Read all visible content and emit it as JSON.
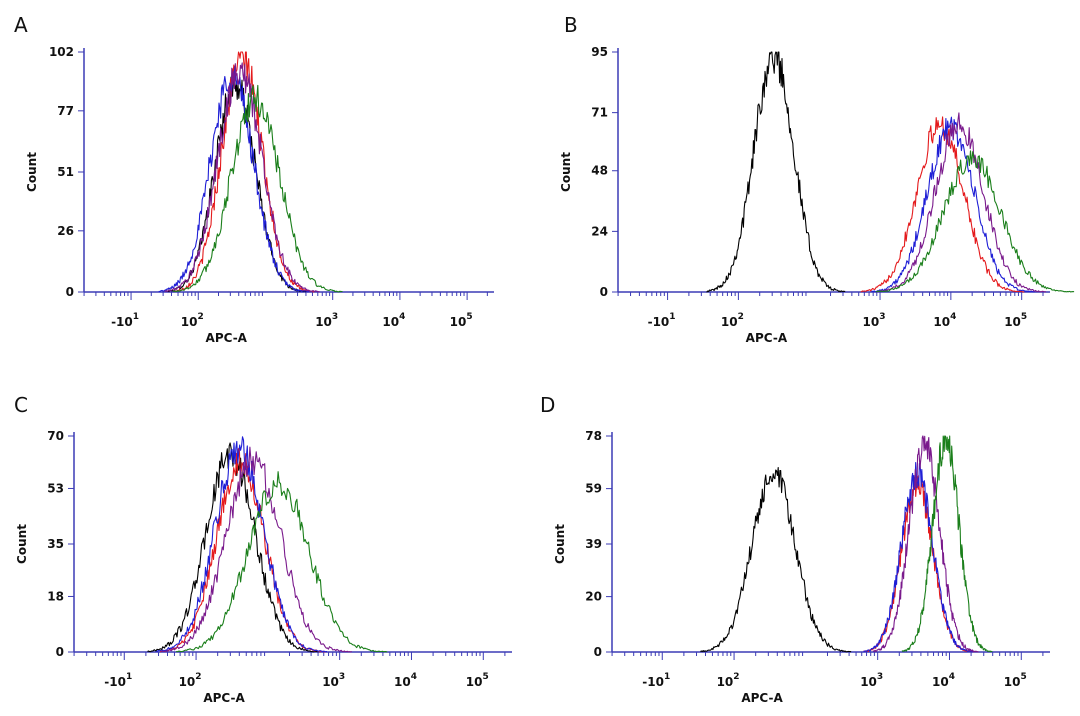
{
  "colors": {
    "isotype": "#000000",
    "red": "#e41a1c",
    "blue": "#1f1fd6",
    "purple": "#7a1a8c",
    "green": "#1b7f1b",
    "axis": "#3b3bb5"
  },
  "chart_data": [
    {
      "type": "line",
      "panel": "A",
      "xlabel": "APC-A",
      "ylabel": "Count",
      "x_scale": "log (decades)",
      "xlim": [
        -0.7,
        5.4
      ],
      "ylim": [
        0,
        102
      ],
      "yticks": [
        0,
        26,
        51,
        77,
        102
      ],
      "xtick_positions": [
        0,
        1,
        3,
        4,
        5
      ],
      "xtick_labels": [
        "-10",
        "10",
        "10",
        "10",
        "10"
      ],
      "xtick_exponents": [
        "1",
        "2",
        "3",
        "4",
        "5"
      ],
      "series": [
        {
          "name": "black",
          "color": "#000000",
          "peak_log": 1.55,
          "peak": 88,
          "width": 0.3
        },
        {
          "name": "red",
          "color": "#e41a1c",
          "peak_log": 1.65,
          "peak": 100,
          "width": 0.3
        },
        {
          "name": "blue",
          "color": "#1f1fd6",
          "peak_log": 1.5,
          "peak": 92,
          "width": 0.32
        },
        {
          "name": "purple",
          "color": "#7a1a8c",
          "peak_log": 1.62,
          "peak": 94,
          "width": 0.33
        },
        {
          "name": "green",
          "color": "#1b7f1b",
          "peak_log": 1.85,
          "peak": 82,
          "width": 0.36
        }
      ]
    },
    {
      "type": "line",
      "panel": "B",
      "xlabel": "APC-A",
      "ylabel": "Count",
      "x_scale": "log (decades)",
      "xlim": [
        -0.7,
        5.4
      ],
      "ylim": [
        0,
        95
      ],
      "yticks": [
        0,
        24,
        48,
        71,
        95
      ],
      "xtick_positions": [
        0,
        1,
        3,
        4,
        5
      ],
      "xtick_labels": [
        "-10",
        "10",
        "10",
        "10",
        "10"
      ],
      "xtick_exponents": [
        "1",
        "2",
        "3",
        "4",
        "5"
      ],
      "series": [
        {
          "name": "black",
          "color": "#000000",
          "peak_log": 1.5,
          "peak": 94,
          "width": 0.28
        },
        {
          "name": "red",
          "color": "#e41a1c",
          "peak_log": 3.85,
          "peak": 66,
          "width": 0.33
        },
        {
          "name": "blue",
          "color": "#1f1fd6",
          "peak_log": 4.0,
          "peak": 65,
          "width": 0.33
        },
        {
          "name": "purple",
          "color": "#7a1a8c",
          "peak_log": 4.12,
          "peak": 66,
          "width": 0.34
        },
        {
          "name": "green",
          "color": "#1b7f1b",
          "peak_log": 4.3,
          "peak": 53,
          "width": 0.4
        }
      ]
    },
    {
      "type": "line",
      "panel": "C",
      "xlabel": "APC-A",
      "ylabel": "Count",
      "x_scale": "log (decades)",
      "xlim": [
        -0.7,
        5.4
      ],
      "ylim": [
        0,
        70
      ],
      "yticks": [
        0,
        18,
        35,
        53,
        70
      ],
      "xtick_positions": [
        0,
        1,
        3,
        4,
        5
      ],
      "xtick_labels": [
        "-10",
        "10",
        "10",
        "10",
        "10"
      ],
      "xtick_exponents": [
        "1",
        "2",
        "3",
        "4",
        "5"
      ],
      "series": [
        {
          "name": "black",
          "color": "#000000",
          "peak_log": 1.48,
          "peak": 64,
          "width": 0.34
        },
        {
          "name": "red",
          "color": "#e41a1c",
          "peak_log": 1.62,
          "peak": 62,
          "width": 0.33
        },
        {
          "name": "blue",
          "color": "#1f1fd6",
          "peak_log": 1.6,
          "peak": 66,
          "width": 0.34
        },
        {
          "name": "purple",
          "color": "#7a1a8c",
          "peak_log": 1.8,
          "peak": 62,
          "width": 0.38
        },
        {
          "name": "green",
          "color": "#1b7f1b",
          "peak_log": 2.15,
          "peak": 55,
          "width": 0.42
        }
      ]
    },
    {
      "type": "line",
      "panel": "D",
      "xlabel": "APC-A",
      "ylabel": "Count",
      "x_scale": "log (decades)",
      "xlim": [
        -0.7,
        5.4
      ],
      "ylim": [
        0,
        78
      ],
      "yticks": [
        0,
        20,
        39,
        59,
        78
      ],
      "xtick_positions": [
        0,
        1,
        3,
        4,
        5
      ],
      "xtick_labels": [
        "-10",
        "10",
        "10",
        "10",
        "10"
      ],
      "xtick_exponents": [
        "1",
        "2",
        "3",
        "4",
        "5"
      ],
      "series": [
        {
          "name": "black",
          "color": "#000000",
          "peak_log": 1.55,
          "peak": 64,
          "width": 0.3
        },
        {
          "name": "red",
          "color": "#e41a1c",
          "peak_log": 3.55,
          "peak": 60,
          "width": 0.22
        },
        {
          "name": "blue",
          "color": "#1f1fd6",
          "peak_log": 3.55,
          "peak": 64,
          "width": 0.22
        },
        {
          "name": "purple",
          "color": "#7a1a8c",
          "peak_log": 3.65,
          "peak": 75,
          "width": 0.21
        },
        {
          "name": "green",
          "color": "#1b7f1b",
          "peak_log": 3.95,
          "peak": 77,
          "width": 0.18
        }
      ]
    }
  ]
}
